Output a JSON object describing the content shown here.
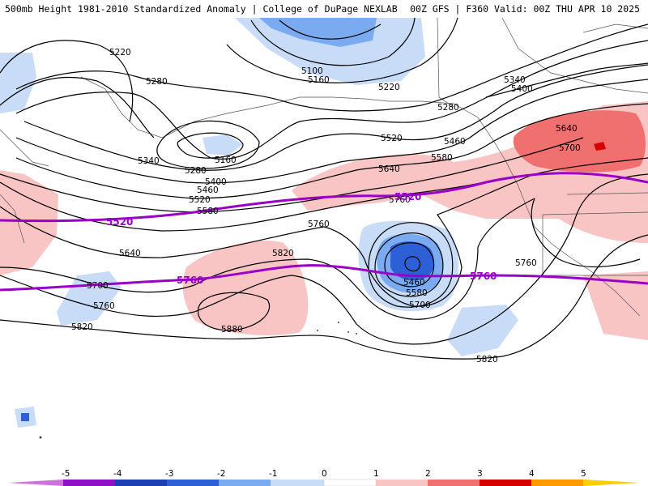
{
  "header": {
    "left": "500mb Height 1981-2010 Standardized Anomaly | College of DuPage NEXLAB",
    "right": "00Z GFS | F360 Valid: 00Z THU APR 10 2025"
  },
  "colors": {
    "pos1": "#f9c4c4",
    "pos2": "#f07070",
    "pos3": "#d70000",
    "neg1": "#c8dcf8",
    "neg2": "#7aaaf0",
    "neg3": "#2d5fd6",
    "reference_line": "#9a00c8",
    "contour": "#000000"
  },
  "contour_labels": [
    {
      "text": "5220"
    },
    {
      "text": "5280"
    },
    {
      "text": "5100"
    },
    {
      "text": "5160"
    },
    {
      "text": "5220"
    },
    {
      "text": "5280"
    },
    {
      "text": "5340"
    },
    {
      "text": "5400"
    },
    {
      "text": "5160"
    },
    {
      "text": "5280"
    },
    {
      "text": "5340"
    },
    {
      "text": "5400"
    },
    {
      "text": "5460"
    },
    {
      "text": "5520"
    },
    {
      "text": "5580"
    },
    {
      "text": "5520"
    },
    {
      "text": "5460"
    },
    {
      "text": "5580"
    },
    {
      "text": "5640"
    },
    {
      "text": "5640"
    },
    {
      "text": "5700"
    },
    {
      "text": "5640"
    },
    {
      "text": "5700"
    },
    {
      "text": "5760"
    },
    {
      "text": "5820"
    },
    {
      "text": "5760"
    },
    {
      "text": "5880"
    },
    {
      "text": "5820"
    },
    {
      "text": "5760"
    },
    {
      "text": "5460"
    },
    {
      "text": "5580"
    },
    {
      "text": "5700"
    },
    {
      "text": "5760"
    },
    {
      "text": "5820"
    }
  ],
  "reference_labels": [
    {
      "text": "5520"
    },
    {
      "text": "5520"
    },
    {
      "text": "5760"
    },
    {
      "text": "5760"
    }
  ],
  "legend": {
    "ticks": [
      "-5",
      "-4",
      "-3",
      "-2",
      "-1",
      "0",
      "1",
      "2",
      "3",
      "4",
      "5"
    ],
    "swatches": [
      "#d070e0",
      "#9010c8",
      "#1c3fb4",
      "#2d5fd6",
      "#7aaaf0",
      "#c8dcf8",
      "#ffffff",
      "#f9c4c4",
      "#f07070",
      "#d70000",
      "#a00000",
      "#ff9900",
      "#ffcc00"
    ]
  }
}
